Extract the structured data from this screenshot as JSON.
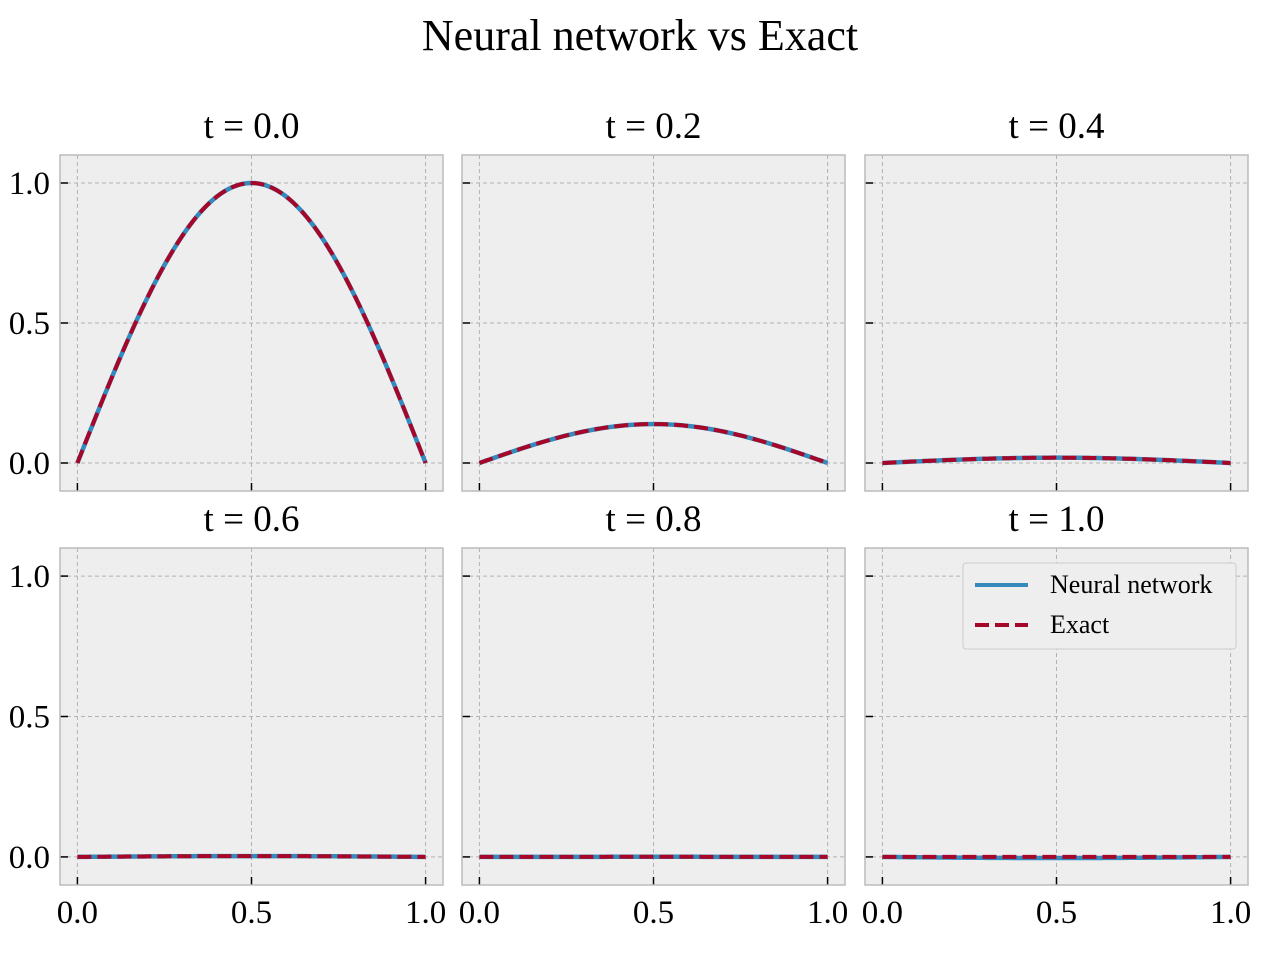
{
  "figure": {
    "title": "Neural network vs Exact",
    "colors": {
      "neural": "#348ABD",
      "exact": "#A60628",
      "background": "#EEEEEE",
      "grid": "#B2B2B2",
      "frame": "#BCBCBC"
    },
    "legend": {
      "location": "top-right",
      "entries": [
        "Neural network",
        "Exact"
      ]
    }
  },
  "chart_data": [
    {
      "type": "line",
      "title": "t = 0.0",
      "xlim": [
        -0.05,
        1.05
      ],
      "ylim": [
        -0.1,
        1.1
      ],
      "xticks": [
        "0.0",
        "0.5",
        "1.0"
      ],
      "yticks": [
        "0.0",
        "0.5",
        "1.0"
      ],
      "grid": true,
      "amplitude": 1.0,
      "series": [
        {
          "name": "Neural network",
          "style": "solid",
          "x": [
            0,
            0.1,
            0.2,
            0.3,
            0.4,
            0.5,
            0.6,
            0.7,
            0.8,
            0.9,
            1.0
          ],
          "y": [
            0,
            0.309,
            0.588,
            0.809,
            0.951,
            1.0,
            0.951,
            0.809,
            0.588,
            0.309,
            0
          ]
        },
        {
          "name": "Exact",
          "style": "dashed",
          "x": [
            0,
            0.1,
            0.2,
            0.3,
            0.4,
            0.5,
            0.6,
            0.7,
            0.8,
            0.9,
            1.0
          ],
          "y": [
            0,
            0.309,
            0.588,
            0.809,
            0.951,
            1.0,
            0.951,
            0.809,
            0.588,
            0.309,
            0
          ]
        }
      ]
    },
    {
      "type": "line",
      "title": "t = 0.2",
      "xlim": [
        -0.05,
        1.05
      ],
      "ylim": [
        -0.1,
        1.1
      ],
      "xticks": [
        "0.0",
        "0.5",
        "1.0"
      ],
      "yticks": [
        "0.0",
        "0.5",
        "1.0"
      ],
      "grid": true,
      "amplitude": 0.139,
      "series": [
        {
          "name": "Neural network",
          "style": "solid",
          "x": [
            0,
            0.1,
            0.2,
            0.3,
            0.4,
            0.5,
            0.6,
            0.7,
            0.8,
            0.9,
            1.0
          ],
          "y": [
            0,
            0.043,
            0.082,
            0.112,
            0.132,
            0.139,
            0.132,
            0.112,
            0.082,
            0.043,
            0
          ]
        },
        {
          "name": "Exact",
          "style": "dashed",
          "x": [
            0,
            0.1,
            0.2,
            0.3,
            0.4,
            0.5,
            0.6,
            0.7,
            0.8,
            0.9,
            1.0
          ],
          "y": [
            0,
            0.043,
            0.082,
            0.112,
            0.132,
            0.139,
            0.132,
            0.112,
            0.082,
            0.043,
            0
          ]
        }
      ]
    },
    {
      "type": "line",
      "title": "t = 0.4",
      "xlim": [
        -0.05,
        1.05
      ],
      "ylim": [
        -0.1,
        1.1
      ],
      "xticks": [
        "0.0",
        "0.5",
        "1.0"
      ],
      "yticks": [
        "0.0",
        "0.5",
        "1.0"
      ],
      "grid": true,
      "amplitude": 0.019,
      "series": [
        {
          "name": "Neural network",
          "style": "solid",
          "x": [
            0,
            0.1,
            0.2,
            0.3,
            0.4,
            0.5,
            0.6,
            0.7,
            0.8,
            0.9,
            1.0
          ],
          "y": [
            0,
            0.006,
            0.011,
            0.015,
            0.018,
            0.019,
            0.018,
            0.015,
            0.011,
            0.006,
            0
          ]
        },
        {
          "name": "Exact",
          "style": "dashed",
          "x": [
            0,
            0.1,
            0.2,
            0.3,
            0.4,
            0.5,
            0.6,
            0.7,
            0.8,
            0.9,
            1.0
          ],
          "y": [
            0,
            0.006,
            0.011,
            0.015,
            0.018,
            0.019,
            0.018,
            0.015,
            0.011,
            0.006,
            0
          ]
        }
      ]
    },
    {
      "type": "line",
      "title": "t = 0.6",
      "xlim": [
        -0.05,
        1.05
      ],
      "ylim": [
        -0.1,
        1.1
      ],
      "xticks": [
        "0.0",
        "0.5",
        "1.0"
      ],
      "yticks": [
        "0.0",
        "0.5",
        "1.0"
      ],
      "grid": true,
      "amplitude": 0.003,
      "series": [
        {
          "name": "Neural network",
          "style": "solid",
          "x": [
            0,
            0.1,
            0.2,
            0.3,
            0.4,
            0.5,
            0.6,
            0.7,
            0.8,
            0.9,
            1.0
          ],
          "y": [
            0,
            0.001,
            0.002,
            0.002,
            0.003,
            0.003,
            0.003,
            0.002,
            0.002,
            0.001,
            0
          ]
        },
        {
          "name": "Exact",
          "style": "dashed",
          "x": [
            0,
            0.1,
            0.2,
            0.3,
            0.4,
            0.5,
            0.6,
            0.7,
            0.8,
            0.9,
            1.0
          ],
          "y": [
            0,
            0.001,
            0.002,
            0.002,
            0.003,
            0.003,
            0.003,
            0.002,
            0.002,
            0.001,
            0
          ]
        }
      ]
    },
    {
      "type": "line",
      "title": "t = 0.8",
      "xlim": [
        -0.05,
        1.05
      ],
      "ylim": [
        -0.1,
        1.1
      ],
      "xticks": [
        "0.0",
        "0.5",
        "1.0"
      ],
      "yticks": [
        "0.0",
        "0.5",
        "1.0"
      ],
      "grid": true,
      "amplitude": 0.0004,
      "series": [
        {
          "name": "Neural network",
          "style": "solid",
          "x": [
            0,
            0.1,
            0.2,
            0.3,
            0.4,
            0.5,
            0.6,
            0.7,
            0.8,
            0.9,
            1.0
          ],
          "y": [
            0,
            0,
            0,
            0,
            0,
            0,
            0,
            0,
            0,
            0,
            0
          ]
        },
        {
          "name": "Exact",
          "style": "dashed",
          "x": [
            0,
            0.1,
            0.2,
            0.3,
            0.4,
            0.5,
            0.6,
            0.7,
            0.8,
            0.9,
            1.0
          ],
          "y": [
            0,
            0,
            0,
            0,
            0,
            0,
            0,
            0,
            0,
            0,
            0
          ]
        }
      ]
    },
    {
      "type": "line",
      "title": "t = 1.0",
      "xlim": [
        -0.05,
        1.05
      ],
      "ylim": [
        -0.1,
        1.1
      ],
      "xticks": [
        "0.0",
        "0.5",
        "1.0"
      ],
      "yticks": [
        "0.0",
        "0.5",
        "1.0"
      ],
      "grid": true,
      "amplitude": 0.0001,
      "series": [
        {
          "name": "Neural network",
          "style": "solid",
          "x": [
            0,
            0.1,
            0.2,
            0.3,
            0.4,
            0.5,
            0.6,
            0.7,
            0.8,
            0.9,
            1.0
          ],
          "y": [
            0,
            -0.001,
            -0.002,
            -0.003,
            -0.004,
            -0.004,
            -0.004,
            -0.003,
            -0.002,
            -0.001,
            0
          ]
        },
        {
          "name": "Exact",
          "style": "dashed",
          "x": [
            0,
            0.1,
            0.2,
            0.3,
            0.4,
            0.5,
            0.6,
            0.7,
            0.8,
            0.9,
            1.0
          ],
          "y": [
            0,
            0,
            0,
            0,
            0,
            0,
            0,
            0,
            0,
            0,
            0
          ]
        }
      ]
    }
  ]
}
